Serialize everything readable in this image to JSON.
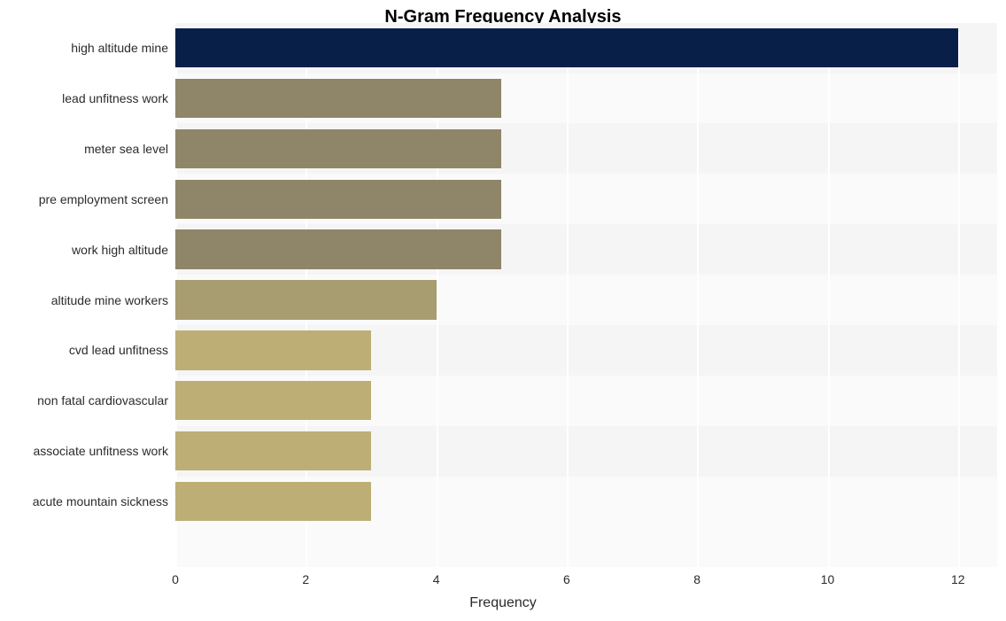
{
  "chart": {
    "type": "bar-horizontal",
    "title": "N-Gram Frequency Analysis",
    "title_fontsize": 20,
    "title_fontweight": 700,
    "xlabel": "Frequency",
    "label_fontsize": 16,
    "tick_fontsize": 14,
    "ylabel_fontsize": 14,
    "background_color": "#ffffff",
    "plot_bg_color": "#fafafa",
    "band_bg_color": "#f5f5f5",
    "grid_color": "#ffffff",
    "text_color": "#2b2b2b",
    "xlim": [
      0,
      12.6
    ],
    "xticks": [
      0,
      2,
      4,
      6,
      8,
      10,
      12
    ],
    "bar_rel_height": 0.78,
    "categories": [
      "high altitude mine",
      "lead unfitness work",
      "meter sea level",
      "pre employment screen",
      "work high altitude",
      "altitude mine workers",
      "cvd lead unfitness",
      "non fatal cardiovascular",
      "associate unfitness work",
      "acute mountain sickness"
    ],
    "values": [
      12,
      5,
      5,
      5,
      5,
      4,
      3,
      3,
      3,
      3
    ],
    "bar_colors": [
      "#082048",
      "#8f8568",
      "#8f8568",
      "#8f8568",
      "#8f8568",
      "#a89c71",
      "#bcae75",
      "#bcae75",
      "#bcae75",
      "#bcae75"
    ]
  }
}
